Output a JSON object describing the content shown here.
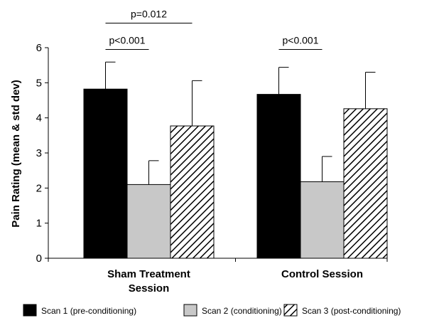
{
  "chart_data": {
    "type": "bar",
    "ylabel": "Pain Rating (mean & std dev)",
    "ylim": [
      0,
      6
    ],
    "yticks": [
      0,
      1,
      2,
      3,
      4,
      5,
      6
    ],
    "grid": false,
    "legend_position": "bottom",
    "categories": [
      {
        "lines": [
          "Sham Treatment",
          "Session"
        ]
      },
      {
        "lines": [
          "Control Session"
        ]
      }
    ],
    "series": [
      {
        "name": "Scan 1 (pre-conditioning)",
        "values": [
          4.82,
          4.67
        ],
        "std": [
          0.77,
          0.77
        ],
        "fill": "#000000",
        "pattern": "solid"
      },
      {
        "name": "Scan 2 (conditioning)",
        "values": [
          2.1,
          2.18
        ],
        "std": [
          0.68,
          0.72
        ],
        "fill": "#c8c8c8",
        "pattern": "solid"
      },
      {
        "name": "Scan 3 (post-conditioning)",
        "values": [
          3.77,
          4.26
        ],
        "std": [
          1.29,
          1.04
        ],
        "fill": "#000000",
        "pattern": "diagonal-hatch"
      }
    ],
    "annotations": [
      {
        "text": "p=0.012",
        "category": 0,
        "from_series": 0,
        "to_series": 2,
        "level": 6.7
      },
      {
        "text": "p<0.001",
        "category": 0,
        "from_series": 0,
        "to_series": 1,
        "level": 5.95
      },
      {
        "text": "p<0.001",
        "category": 1,
        "from_series": 0,
        "to_series": 1,
        "level": 5.95
      }
    ]
  }
}
